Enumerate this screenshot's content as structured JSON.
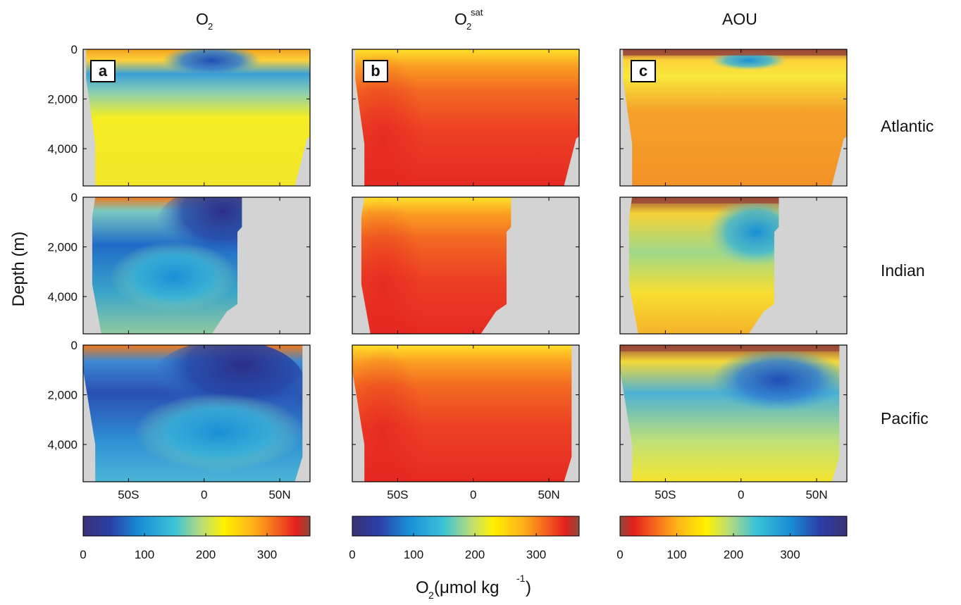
{
  "figure": {
    "y_axis_label": "Depth (m)",
    "x_axis_label": {
      "base": "O",
      "sub": "2",
      "rest": " (μmol kg",
      "sup": "-1",
      "close": ")"
    },
    "column_titles": [
      {
        "base": "O",
        "sub": "2",
        "sup": ""
      },
      {
        "base": "O",
        "sub": "2",
        "sup": "sat"
      },
      {
        "base": "AOU",
        "sub": "",
        "sup": ""
      }
    ],
    "row_labels": [
      "Atlantic",
      "Indian",
      "Pacific"
    ],
    "panel_letters": [
      "a",
      "b",
      "c"
    ],
    "depth_ticks": [
      "0",
      "2,000",
      "4,000"
    ],
    "lat_ticks": [
      "50S",
      "0",
      "50N"
    ],
    "land_color": "#d3d3d3"
  },
  "chart_data": [
    {
      "type": "heatmap",
      "title": "O2",
      "variable": "O2",
      "panel": "a",
      "x_ticks": [
        "50S",
        "0",
        "50N"
      ],
      "y_ticks": [
        0,
        2000,
        4000
      ],
      "ylabel": "Depth (m)",
      "ylim": [
        5500,
        0
      ],
      "rows": [
        {
          "basin": "Atlantic",
          "description_values": {
            "surface": 260,
            "intermediate_tropics": 80,
            "deep": 260,
            "deep_north": 280
          }
        },
        {
          "basin": "Indian",
          "description_values": {
            "surface": 240,
            "north_intermediate": 40,
            "deep": 180
          }
        },
        {
          "basin": "Pacific",
          "description_values": {
            "surface": 250,
            "north_intermediate": 30,
            "deep": 140,
            "deep_south": 200
          }
        }
      ],
      "colorbar": {
        "ticks": [
          0,
          100,
          200,
          300
        ],
        "range": [
          0,
          370
        ],
        "colormap": "jet"
      }
    },
    {
      "type": "heatmap",
      "title": "O2 sat",
      "variable": "O2sat",
      "panel": "b",
      "x_ticks": [
        "50S",
        "0",
        "50N"
      ],
      "y_ticks": [
        0,
        2000,
        4000
      ],
      "ylabel": "Depth (m)",
      "ylim": [
        5500,
        0
      ],
      "rows": [
        {
          "basin": "Atlantic",
          "description_values": {
            "surface_tropics": 250,
            "deep": 340,
            "high_latitude_surface": 360
          }
        },
        {
          "basin": "Indian",
          "description_values": {
            "surface_tropics": 240,
            "deep": 340
          }
        },
        {
          "basin": "Pacific",
          "description_values": {
            "surface_tropics": 240,
            "deep": 345
          }
        }
      ],
      "colorbar": {
        "ticks": [
          0,
          100,
          200,
          300
        ],
        "range": [
          0,
          370
        ],
        "colormap": "jet"
      }
    },
    {
      "type": "heatmap",
      "title": "AOU",
      "variable": "AOU",
      "panel": "c",
      "x_ticks": [
        "50S",
        "0",
        "50N"
      ],
      "y_ticks": [
        0,
        2000,
        4000
      ],
      "ylabel": "Depth (m)",
      "ylim": [
        5500,
        0
      ],
      "rows": [
        {
          "basin": "Atlantic",
          "description_values": {
            "surface": 0,
            "intermediate_tropics": 170,
            "deep": 60
          }
        },
        {
          "basin": "Indian",
          "description_values": {
            "surface": 0,
            "north_intermediate": 260,
            "deep": 150
          }
        },
        {
          "basin": "Pacific",
          "description_values": {
            "surface": 0,
            "north_intermediate": 300,
            "deep": 220
          }
        }
      ],
      "colorbar": {
        "ticks": [
          0,
          100,
          200,
          300
        ],
        "range": [
          0,
          400
        ],
        "colormap": "jet_reversed"
      }
    }
  ]
}
